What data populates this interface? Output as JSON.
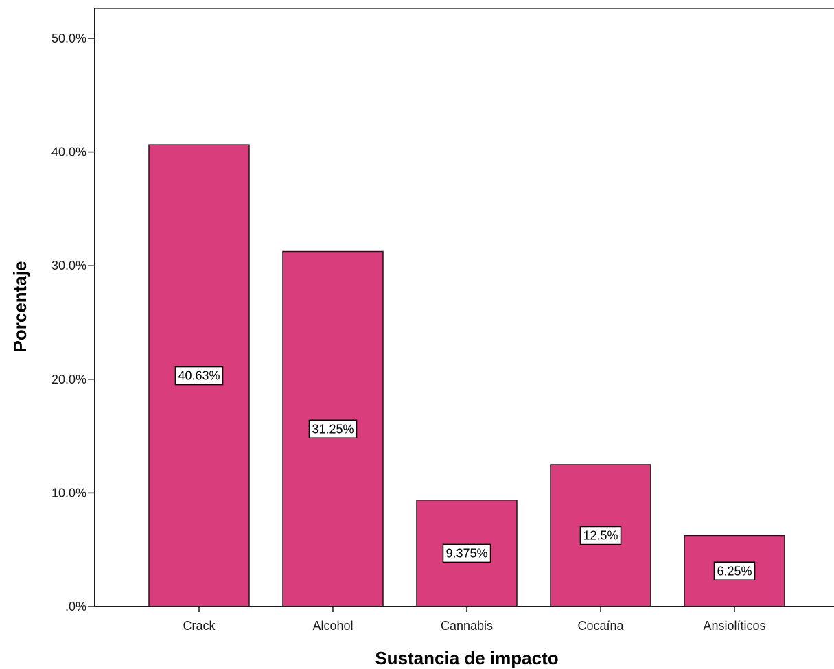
{
  "chart_data": {
    "type": "bar",
    "xlabel": "Sustancia de impacto",
    "ylabel": "Porcentaje",
    "categories": [
      "Crack",
      "Alcohol",
      "Cannabis",
      "Cocaína",
      "Ansiolíticos"
    ],
    "values": [
      40.63,
      31.25,
      9.375,
      12.5,
      6.25
    ],
    "data_labels": [
      "40.63%",
      "31.25%",
      "9.375%",
      "12.5%",
      "6.25%"
    ],
    "yticks": [
      ".0%",
      "10.0%",
      "20.0%",
      "30.0%",
      "40.0%",
      "50.0%"
    ],
    "ytick_values": [
      0,
      10,
      20,
      30,
      40,
      50
    ],
    "ylim": [
      0,
      52.5
    ],
    "grid": false,
    "legend": "none",
    "colors": {
      "bar_fill": "#D93D7C",
      "bar_stroke": "#1a1a1a",
      "axis": "#1a1a1a",
      "label_box_fill": "#ffffff"
    }
  }
}
